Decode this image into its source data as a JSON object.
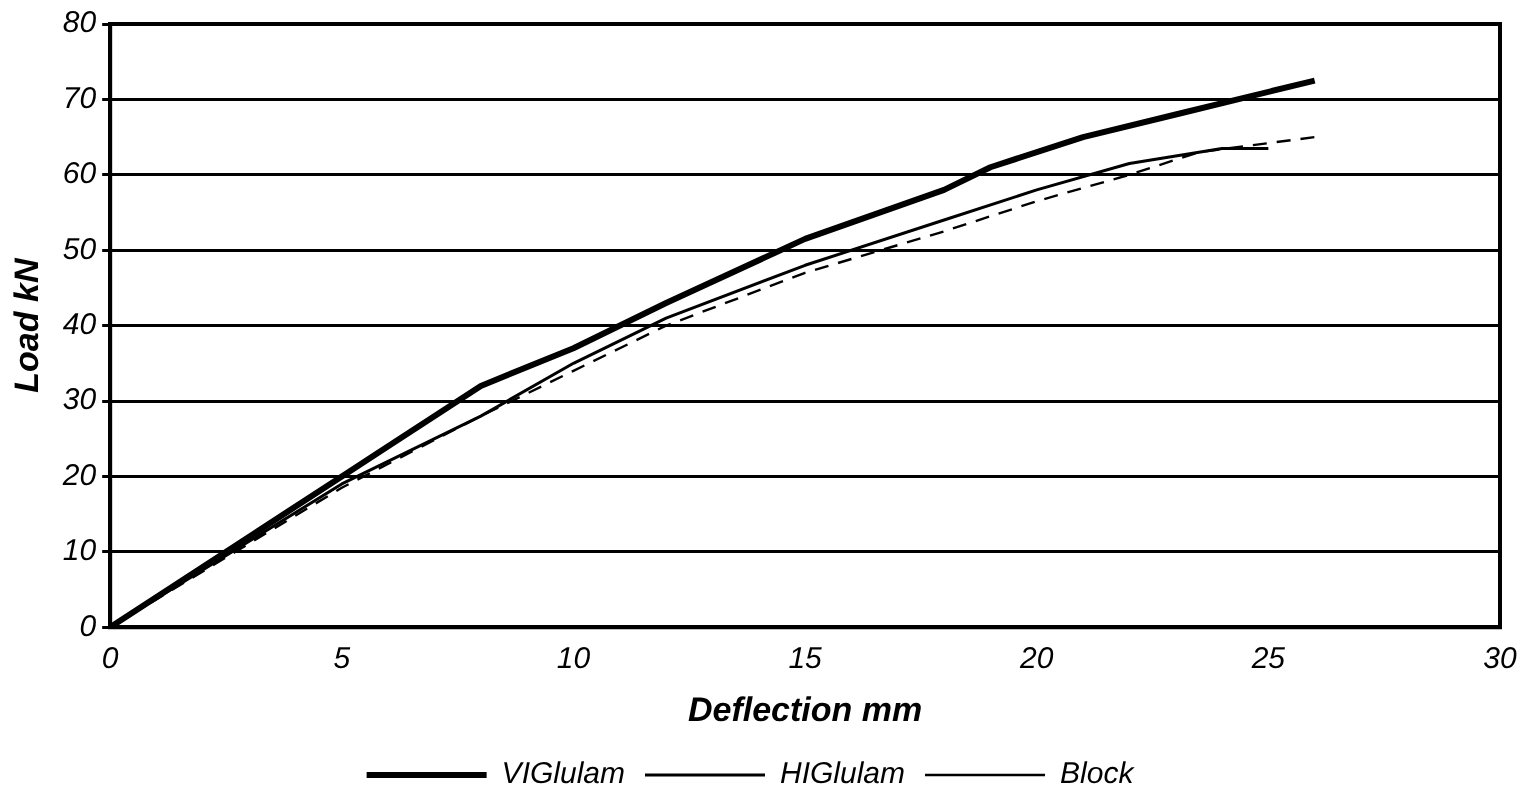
{
  "chart_data": {
    "type": "line",
    "xlabel": "Deflection mm",
    "ylabel": "Load kN",
    "xlim": [
      0,
      30
    ],
    "xticks": [
      0,
      5,
      10,
      15,
      20,
      25,
      30
    ],
    "ylim": [
      0,
      80
    ],
    "yticks": [
      0,
      10,
      20,
      30,
      40,
      50,
      60,
      70,
      80
    ],
    "grid": "y",
    "legend": "bottom",
    "marker": "none",
    "series": [
      {
        "name": "VIGlulam",
        "color": "#000000",
        "line_style": "solid",
        "x": [
          0,
          5,
          6,
          8,
          10,
          12,
          15,
          18,
          19,
          21,
          23,
          26
        ],
        "values": [
          0,
          20,
          24,
          32,
          37,
          43,
          51.5,
          58,
          61,
          65,
          68,
          72.5
        ]
      },
      {
        "name": "HIGlulam",
        "color": "#000000",
        "line_style": "solid",
        "x": [
          0,
          5,
          8,
          10,
          12,
          15,
          18,
          20,
          22,
          24,
          25
        ],
        "values": [
          0,
          19,
          28,
          35,
          41,
          48,
          54,
          58,
          61.5,
          63.5,
          63.5
        ]
      },
      {
        "name": "Block",
        "color": "#000000",
        "line_style": "dashed",
        "x": [
          0,
          5,
          8,
          10,
          12,
          15,
          18,
          20,
          22,
          23.5,
          26
        ],
        "values": [
          0,
          18.5,
          28,
          34,
          40,
          47,
          52.5,
          56.5,
          60,
          63,
          65
        ]
      }
    ]
  }
}
